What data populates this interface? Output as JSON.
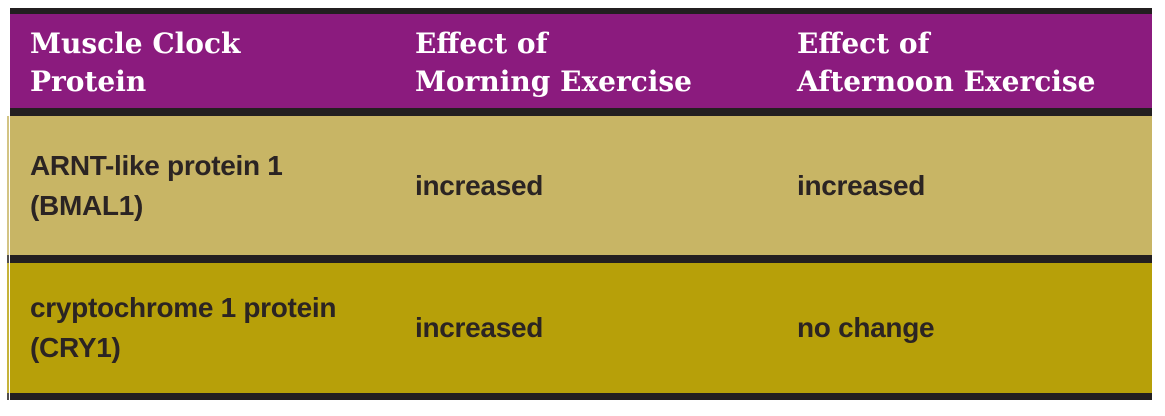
{
  "colors": {
    "header_bg": "#8b1b7e",
    "row1_bg": "#c8b565",
    "row2_bg": "#b7a009",
    "rule": "#231f20",
    "header_text": "#ffffff",
    "body_text": "#2b2423",
    "page_bg": "#ffffff"
  },
  "table": {
    "header": {
      "col1": {
        "line1": "Muscle Clock",
        "line2": "Protein"
      },
      "col2": {
        "line1": "Effect of",
        "line2": "Morning Exercise"
      },
      "col3": {
        "line1": "Effect of",
        "line2": "Afternoon Exercise"
      }
    },
    "rows": [
      {
        "protein_line1": "ARNT-like protein 1",
        "protein_line2": "(BMAL1)",
        "morning": "increased",
        "afternoon": "increased"
      },
      {
        "protein_line1": "cryptochrome 1 protein",
        "protein_line2": "(CRY1)",
        "morning": "increased",
        "afternoon": "no change"
      }
    ]
  },
  "chart_data": {
    "type": "table",
    "title": "",
    "columns": [
      "Muscle Clock Protein",
      "Effect of Morning Exercise",
      "Effect of Afternoon Exercise"
    ],
    "rows": [
      [
        "ARNT-like protein 1 (BMAL1)",
        "increased",
        "increased"
      ],
      [
        "cryptochrome 1 protein (CRY1)",
        "increased",
        "no change"
      ]
    ],
    "layout_hints": {
      "header_style": "purple band, white slab-serif bold text",
      "row_styles": [
        "khaki band",
        "mustard band"
      ],
      "separators": "thick dark horizontal rules only, no vertical rules"
    }
  }
}
